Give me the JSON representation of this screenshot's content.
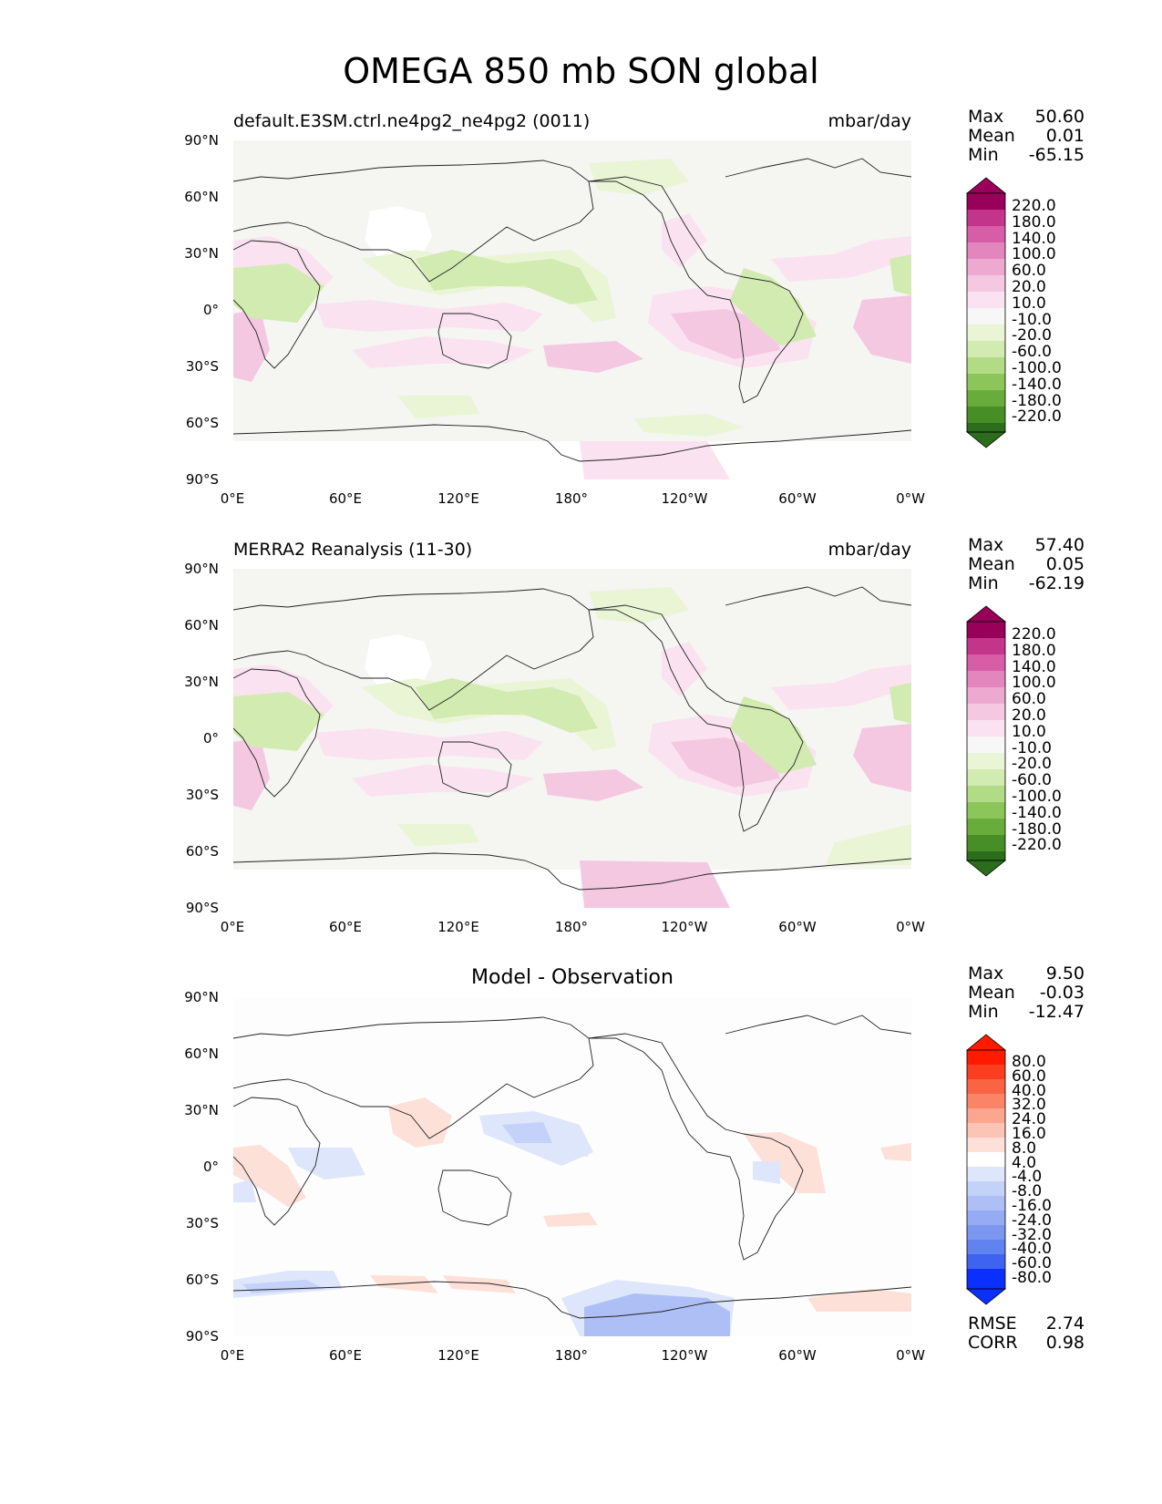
{
  "title": "OMEGA 850 mb SON global",
  "colors": {
    "ocean_fill": "#f5f5f2",
    "pink_scale": [
      "#fbe2f0",
      "#f5c8e2",
      "#eea9d1",
      "#e386be",
      "#d65da6",
      "#c2358b",
      "#98005a"
    ],
    "green_scale": [
      "#eaf5d6",
      "#d2ebb0",
      "#b1db84",
      "#8cc65a",
      "#68ac3c",
      "#478e27",
      "#2c6d1c"
    ],
    "red_scale": [
      "#fde0d8",
      "#fcc4b5",
      "#fca58f",
      "#fb8468",
      "#fa6443",
      "#fb3e20",
      "#ff1a00"
    ],
    "blue_scale": [
      "#dde6fb",
      "#c4d2f9",
      "#aebff6",
      "#95abf3",
      "#7b97f0",
      "#6183ef",
      "#3f63f1",
      "#0b2fff"
    ]
  },
  "panels": [
    {
      "id": "test",
      "title": "default.E3SM.ctrl.ne4pg2_ne4pg2 (0011)",
      "units": "mbar/day",
      "stats": [
        {
          "label": "Max",
          "value": "50.60"
        },
        {
          "label": "Mean",
          "value": "0.01"
        },
        {
          "label": "Min",
          "value": "-65.15"
        }
      ],
      "colorbar_labels": [
        "220.0",
        "180.0",
        "140.0",
        "100.0",
        "60.0",
        "20.0",
        "10.0",
        "-10.0",
        "-20.0",
        "-60.0",
        "-100.0",
        "-140.0",
        "-180.0",
        "-220.0"
      ]
    },
    {
      "id": "reference",
      "title": "MERRA2 Reanalysis (11-30)",
      "units": "mbar/day",
      "stats": [
        {
          "label": "Max",
          "value": "57.40"
        },
        {
          "label": "Mean",
          "value": "0.05"
        },
        {
          "label": "Min",
          "value": "-62.19"
        }
      ],
      "colorbar_labels": [
        "220.0",
        "180.0",
        "140.0",
        "100.0",
        "60.0",
        "20.0",
        "10.0",
        "-10.0",
        "-20.0",
        "-60.0",
        "-100.0",
        "-140.0",
        "-180.0",
        "-220.0"
      ]
    },
    {
      "id": "difference",
      "title": "Model - Observation",
      "units": "",
      "stats": [
        {
          "label": "Max",
          "value": "9.50"
        },
        {
          "label": "Mean",
          "value": "-0.03"
        },
        {
          "label": "Min",
          "value": "-12.47"
        }
      ],
      "colorbar_labels": [
        "80.0",
        "60.0",
        "40.0",
        "32.0",
        "24.0",
        "16.0",
        "8.0",
        "4.0",
        "-4.0",
        "-8.0",
        "-16.0",
        "-24.0",
        "-32.0",
        "-40.0",
        "-60.0",
        "-80.0"
      ],
      "extra_stats": [
        {
          "label": "RMSE",
          "value": "2.74"
        },
        {
          "label": "CORR",
          "value": "0.98"
        }
      ]
    }
  ],
  "axes": {
    "lat_ticks": [
      "90°N",
      "60°N",
      "30°N",
      "0°",
      "30°S",
      "60°S",
      "90°S"
    ],
    "lon_ticks": [
      "0°E",
      "60°E",
      "120°E",
      "180°",
      "120°W",
      "60°W",
      "0°W"
    ]
  }
}
